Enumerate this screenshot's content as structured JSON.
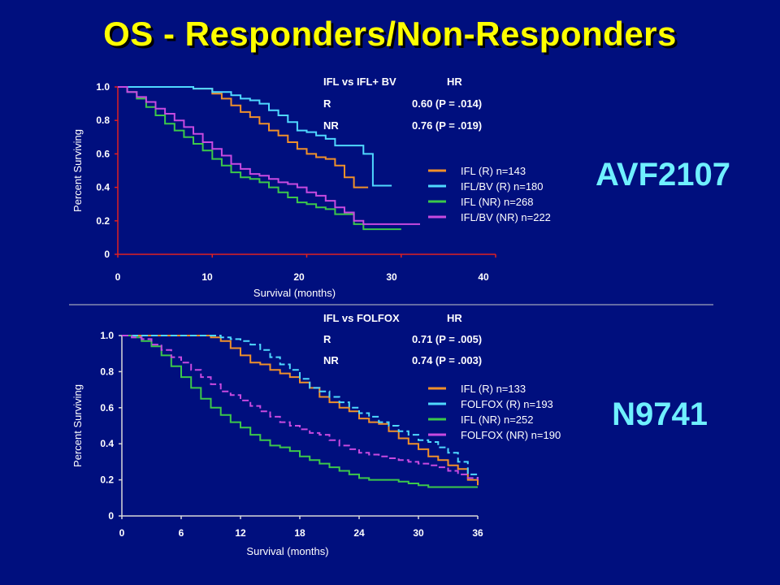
{
  "title": "OS - Responders/Non-Responders",
  "colors": {
    "background": "#000f7e",
    "title": "#ffff00",
    "study_label": "#6ff0ff",
    "IFL_R": "#f0902a",
    "BV_R": "#4fd8ff",
    "IFL_NR": "#3cc84a",
    "BV_NR": "#c84ae0"
  },
  "chart_data": [
    {
      "type": "line",
      "study": "AVF2107",
      "xlabel": "Survival (months)",
      "ylabel": "Percent Surviving",
      "x_ticks": [
        "0",
        "10",
        "20",
        "30",
        "40"
      ],
      "y_ticks": [
        "0",
        "0.2",
        "0.4",
        "0.6",
        "0.8",
        "1.0"
      ],
      "xlim": [
        0,
        40
      ],
      "ylim": [
        0,
        1.0
      ],
      "hr_table": {
        "header": [
          "IFL vs IFL+ BV",
          "HR"
        ],
        "rows": [
          {
            "group": "R",
            "hr": "0.60 (P = .014)"
          },
          {
            "group": "NR",
            "hr": "0.76 (P = .019)"
          }
        ]
      },
      "series": [
        {
          "name": "IFL (R) n=143",
          "color": "#f0902a",
          "dash": "",
          "x": [
            0,
            3,
            6,
            8,
            10,
            11,
            12,
            13,
            14,
            15,
            16,
            17,
            18,
            19,
            20,
            21,
            22,
            23,
            24,
            25,
            26.5
          ],
          "y": [
            1.0,
            1.0,
            1.0,
            0.99,
            0.96,
            0.93,
            0.89,
            0.85,
            0.82,
            0.78,
            0.74,
            0.71,
            0.67,
            0.63,
            0.6,
            0.58,
            0.57,
            0.53,
            0.46,
            0.4,
            0.4
          ]
        },
        {
          "name": "IFL/BV (R) n=180",
          "color": "#4fd8ff",
          "dash": "",
          "x": [
            0,
            4,
            8,
            10,
            12,
            13,
            14,
            15,
            16,
            17,
            18,
            19,
            20,
            21,
            22,
            23,
            24,
            25,
            26,
            27,
            29
          ],
          "y": [
            1.0,
            1.0,
            0.99,
            0.97,
            0.95,
            0.93,
            0.92,
            0.9,
            0.86,
            0.83,
            0.79,
            0.74,
            0.73,
            0.71,
            0.69,
            0.65,
            0.65,
            0.65,
            0.6,
            0.41,
            0.41
          ]
        },
        {
          "name": "IFL (NR) n=268",
          "color": "#3cc84a",
          "dash": "",
          "x": [
            0,
            1,
            2,
            3,
            4,
            5,
            6,
            7,
            8,
            9,
            10,
            11,
            12,
            13,
            14,
            15,
            16,
            17,
            18,
            19,
            20,
            21,
            22,
            23,
            24,
            25,
            26,
            27,
            28,
            30
          ],
          "y": [
            1.0,
            0.97,
            0.93,
            0.88,
            0.83,
            0.78,
            0.74,
            0.7,
            0.66,
            0.62,
            0.57,
            0.53,
            0.49,
            0.46,
            0.45,
            0.43,
            0.4,
            0.37,
            0.34,
            0.31,
            0.3,
            0.28,
            0.27,
            0.24,
            0.24,
            0.18,
            0.15,
            0.15,
            0.15,
            0.15
          ]
        },
        {
          "name": "IFL/BV (NR) n=222",
          "color": "#c84ae0",
          "dash": "",
          "x": [
            0,
            1,
            2,
            3,
            4,
            5,
            6,
            7,
            8,
            9,
            10,
            11,
            12,
            13,
            14,
            15,
            16,
            17,
            18,
            19,
            20,
            21,
            22,
            23,
            24,
            25,
            26,
            27,
            28,
            30,
            32
          ],
          "y": [
            1.0,
            0.97,
            0.94,
            0.91,
            0.87,
            0.84,
            0.8,
            0.76,
            0.72,
            0.67,
            0.63,
            0.59,
            0.54,
            0.51,
            0.48,
            0.47,
            0.45,
            0.43,
            0.42,
            0.4,
            0.37,
            0.35,
            0.32,
            0.28,
            0.25,
            0.2,
            0.18,
            0.18,
            0.18,
            0.18,
            0.18
          ]
        }
      ]
    },
    {
      "type": "line",
      "study": "N9741",
      "xlabel": "Survival (months)",
      "ylabel": "Percent Surviving",
      "x_ticks": [
        "0",
        "6",
        "12",
        "18",
        "24",
        "30",
        "36"
      ],
      "y_ticks": [
        "0",
        "0.2",
        "0.4",
        "0.6",
        "0.8",
        "1.0"
      ],
      "xlim": [
        0,
        36
      ],
      "ylim": [
        0,
        1.0
      ],
      "hr_table": {
        "header": [
          "IFL vs FOLFOX",
          "HR"
        ],
        "rows": [
          {
            "group": "R",
            "hr": "0.71 (P = .005)"
          },
          {
            "group": "NR",
            "hr": "0.74 (P = .003)"
          }
        ]
      },
      "series": [
        {
          "name": "IFL (R) n=133",
          "color": "#f0902a",
          "dash": "",
          "x": [
            0,
            4,
            7,
            9,
            10,
            11,
            12,
            13,
            14,
            15,
            16,
            17,
            18,
            19,
            20,
            21,
            22,
            23,
            24,
            25,
            26,
            27,
            28,
            29,
            30,
            31,
            32,
            33,
            34,
            35,
            36
          ],
          "y": [
            1.0,
            1.0,
            1.0,
            0.99,
            0.97,
            0.93,
            0.89,
            0.85,
            0.84,
            0.81,
            0.79,
            0.77,
            0.74,
            0.71,
            0.66,
            0.63,
            0.6,
            0.58,
            0.54,
            0.52,
            0.51,
            0.47,
            0.43,
            0.4,
            0.37,
            0.33,
            0.31,
            0.28,
            0.26,
            0.2,
            0.17
          ]
        },
        {
          "name": "FOLFOX (R) n=193",
          "color": "#4fd8ff",
          "dash": "8,4",
          "x": [
            0,
            4,
            7,
            9,
            10,
            11,
            12,
            13,
            14,
            15,
            16,
            17,
            18,
            19,
            20,
            21,
            22,
            23,
            24,
            25,
            26,
            27,
            28,
            29,
            30,
            31,
            32,
            33,
            34,
            35,
            36
          ],
          "y": [
            1.0,
            1.0,
            1.0,
            1.0,
            0.99,
            0.98,
            0.97,
            0.95,
            0.92,
            0.88,
            0.84,
            0.81,
            0.76,
            0.71,
            0.69,
            0.66,
            0.63,
            0.6,
            0.57,
            0.55,
            0.52,
            0.5,
            0.47,
            0.45,
            0.42,
            0.41,
            0.38,
            0.35,
            0.3,
            0.23,
            0.21
          ]
        },
        {
          "name": "IFL (NR) n=252",
          "color": "#3cc84a",
          "dash": "",
          "x": [
            0,
            1,
            2,
            3,
            4,
            5,
            6,
            7,
            8,
            9,
            10,
            11,
            12,
            13,
            14,
            15,
            16,
            17,
            18,
            19,
            20,
            21,
            22,
            23,
            24,
            25,
            26,
            27,
            28,
            29,
            30,
            31,
            32,
            33,
            34,
            35,
            36
          ],
          "y": [
            1.0,
            0.99,
            0.97,
            0.94,
            0.89,
            0.83,
            0.77,
            0.71,
            0.65,
            0.6,
            0.56,
            0.52,
            0.49,
            0.45,
            0.42,
            0.39,
            0.38,
            0.36,
            0.33,
            0.31,
            0.29,
            0.27,
            0.25,
            0.23,
            0.21,
            0.2,
            0.2,
            0.2,
            0.19,
            0.18,
            0.17,
            0.16,
            0.16,
            0.16,
            0.16,
            0.16,
            0.16
          ]
        },
        {
          "name": "FOLFOX (NR) n=190",
          "color": "#c84ae0",
          "dash": "8,4",
          "x": [
            0,
            1,
            2,
            3,
            4,
            5,
            6,
            7,
            8,
            9,
            10,
            11,
            12,
            13,
            14,
            15,
            16,
            17,
            18,
            19,
            20,
            21,
            22,
            23,
            24,
            25,
            26,
            27,
            28,
            29,
            30,
            31,
            32,
            33,
            34,
            35,
            36
          ],
          "y": [
            1.0,
            0.99,
            0.98,
            0.95,
            0.92,
            0.88,
            0.85,
            0.81,
            0.77,
            0.73,
            0.69,
            0.67,
            0.64,
            0.61,
            0.58,
            0.55,
            0.52,
            0.5,
            0.48,
            0.46,
            0.45,
            0.42,
            0.39,
            0.37,
            0.35,
            0.34,
            0.33,
            0.32,
            0.31,
            0.3,
            0.29,
            0.28,
            0.27,
            0.25,
            0.23,
            0.21,
            0.2
          ]
        }
      ]
    }
  ]
}
